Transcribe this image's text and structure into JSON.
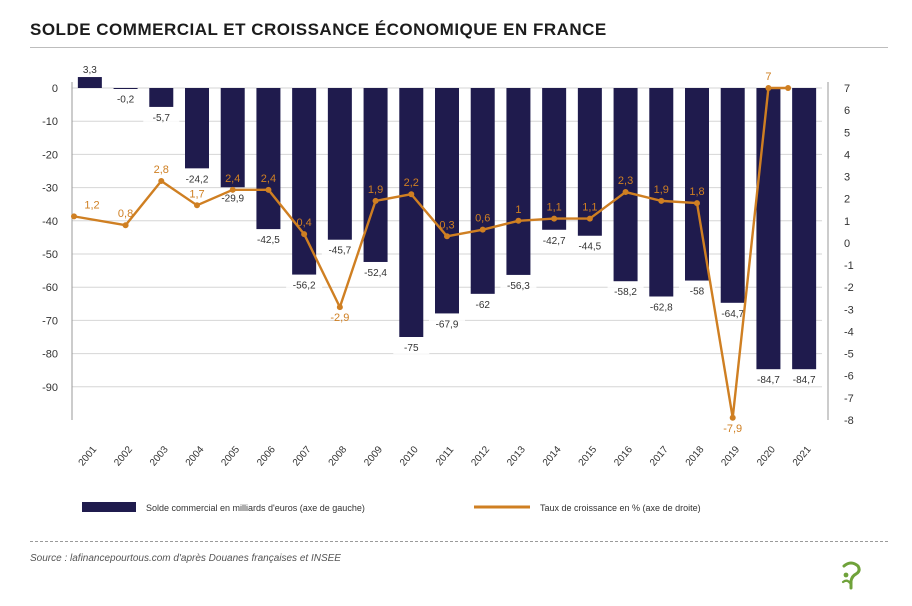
{
  "title": "SOLDE COMMERCIAL ET CROISSANCE ÉCONOMIQUE EN FRANCE",
  "source": "Source : lafinancepourtous.com d'après Douanes françaises et INSEE",
  "colors": {
    "bars": "#1f1b4d",
    "line": "#cf7f22",
    "grid": "#d6d6d6"
  },
  "chart_data": {
    "type": "bar",
    "categories": [
      "2001",
      "2002",
      "2003",
      "2004",
      "2005",
      "2006",
      "2007",
      "2008",
      "2009",
      "2010",
      "2011",
      "2012",
      "2013",
      "2014",
      "2015",
      "2016",
      "2017",
      "2018",
      "2019",
      "2020",
      "2021"
    ],
    "series": [
      {
        "name": "Solde commercial en milliards d'euros (axe de gauche)",
        "type": "bar",
        "axis": "left",
        "values": [
          3.3,
          -0.2,
          -5.7,
          -24.2,
          -29.9,
          -42.5,
          -56.2,
          -45.7,
          -52.4,
          -75,
          -67.9,
          -62,
          -56.3,
          -42.7,
          -44.5,
          -58.2,
          -62.8,
          -58,
          -64.7,
          -84.7,
          -84.7
        ],
        "labels": [
          "3,3",
          "-0,2",
          "-5,7",
          "-24,2",
          "-29,9",
          "-42,5",
          "-56,2",
          "-45,7",
          "-52,4",
          "-75",
          "-67,9",
          "-62",
          "-56,3",
          "-42,7",
          "-44,5",
          "-58,2",
          "-62,8",
          "-58",
          "-64,7",
          "-84,7",
          "-84,7"
        ]
      },
      {
        "name": "Taux de croissance en % (axe de droite)",
        "type": "line",
        "axis": "right",
        "values": [
          1.2,
          0.8,
          2.8,
          1.7,
          2.4,
          2.4,
          0.4,
          -2.9,
          1.9,
          2.2,
          0.3,
          0.6,
          1,
          1.1,
          1.1,
          2.3,
          1.9,
          1.8,
          -7.9,
          7,
          7
        ],
        "labels": [
          "1,2",
          "0,8",
          "2,8",
          "1,7",
          "2,4",
          "2,4",
          "0,4",
          "-2,9",
          "1,9",
          "2,2",
          "0,3",
          "0,6",
          "1",
          "1,1",
          "1,1",
          "2,3",
          "1,9",
          "1,8",
          "-7,9",
          "7",
          ""
        ]
      }
    ],
    "y_left": {
      "lim": [
        -100,
        0
      ],
      "ticks": [
        0,
        -10,
        -20,
        -30,
        -40,
        -50,
        -60,
        -70,
        -80,
        -90
      ]
    },
    "y_right": {
      "lim": [
        -8,
        7
      ],
      "ticks": [
        7,
        6,
        5,
        4,
        3,
        2,
        1,
        0,
        -1,
        -2,
        -3,
        -4,
        -5,
        -6,
        -7,
        -8
      ]
    },
    "grid": true,
    "legend_position": "bottom"
  }
}
